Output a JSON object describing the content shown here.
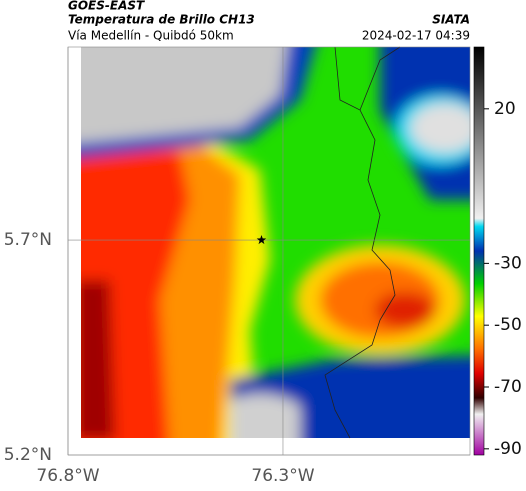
{
  "header": {
    "source": "GOES-EAST",
    "title": "Temperatura de Brillo CH13",
    "subtitle": "Vía Medellín - Quibdó 50km",
    "brand": "SIATA",
    "timestamp": "2024-02-17 04:39"
  },
  "map": {
    "lonlim": [
      -76.8,
      -75.865
    ],
    "latlim": [
      5.2,
      6.149
    ],
    "lonticks": [
      {
        "value": -76.8,
        "label": "76.8°W"
      },
      {
        "value": -76.3,
        "label": "76.3°W"
      }
    ],
    "latticks": [
      {
        "value": 5.2,
        "label": "5.2°N"
      },
      {
        "value": 5.7,
        "label": "5.7°N"
      }
    ],
    "marker": {
      "lon": -76.35,
      "lat": 5.7
    }
  },
  "colorbar": {
    "lim": [
      -92,
      40
    ],
    "ticks": [
      20,
      -30,
      -50,
      -70,
      -90
    ]
  }
}
